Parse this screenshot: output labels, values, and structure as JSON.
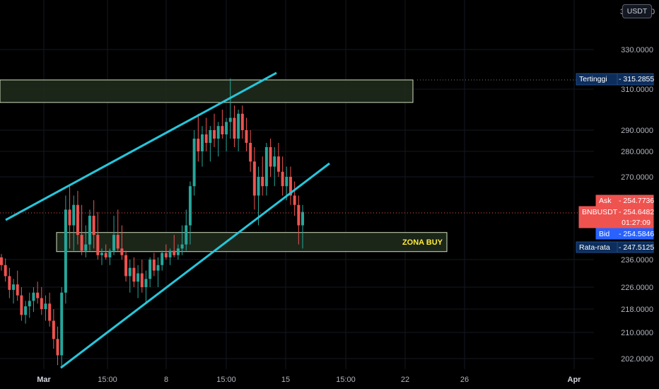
{
  "currency_button": "USDT",
  "top_partial_label": "3",
  "top_partial_suffix": "0",
  "chart_data": {
    "type": "candlestick",
    "y_ticks": [
      "330.0000",
      "310.0000",
      "290.0000",
      "280.0000",
      "270.0000",
      "236.0000",
      "226.0000",
      "218.0000",
      "210.0000",
      "202.0000"
    ],
    "x_ticks": [
      {
        "label": "Mar",
        "bold": true
      },
      {
        "label": "15:00",
        "bold": false
      },
      {
        "label": "8",
        "bold": false
      },
      {
        "label": "15:00",
        "bold": false
      },
      {
        "label": "15",
        "bold": false
      },
      {
        "label": "15:00",
        "bold": false
      },
      {
        "label": "22",
        "bold": false
      },
      {
        "label": "26",
        "bold": false
      },
      {
        "label": "Apr",
        "bold": true
      }
    ],
    "price_badges": [
      {
        "label": "Tertinggi",
        "value": "315.2855",
        "style": "dark"
      },
      {
        "label": "Ask",
        "value": "254.7736",
        "style": "red"
      },
      {
        "label": "BNBUSDT",
        "value": "254.6482",
        "extra": "01:27:09",
        "style": "red"
      },
      {
        "label": "Bid",
        "value": "254.5846",
        "style": "blue"
      },
      {
        "label": "Rata-rata",
        "value": "247.5125",
        "style": "dark"
      }
    ],
    "zones": [
      {
        "label": "",
        "top": 315.3,
        "bottom": 303.5
      },
      {
        "label": "ZONA BUY",
        "top": 250.5,
        "bottom": 243.2
      }
    ],
    "colors": {
      "up": "#26a69a",
      "down": "#ef5350",
      "trendline": "#26c6da",
      "zone_border": "#d1dfc0",
      "zone_fill": "#1e2a1c",
      "grid": "#131722"
    },
    "ohlc": [
      [
        238,
        241,
        232,
        234
      ],
      [
        234,
        237,
        228,
        230
      ],
      [
        230,
        233,
        222,
        225
      ],
      [
        225,
        229,
        220,
        227
      ],
      [
        227,
        232,
        221,
        223
      ],
      [
        223,
        226,
        214,
        216
      ],
      [
        216,
        221,
        213,
        219
      ],
      [
        219,
        224,
        215,
        221
      ],
      [
        221,
        226,
        217,
        224
      ],
      [
        224,
        228,
        220,
        222
      ],
      [
        222,
        226,
        216,
        218
      ],
      [
        218,
        223,
        214,
        220
      ],
      [
        220,
        224,
        212,
        214
      ],
      [
        214,
        218,
        205,
        208
      ],
      [
        208,
        212,
        200,
        203
      ],
      [
        203,
        226,
        199,
        224
      ],
      [
        224,
        262,
        220,
        256
      ],
      [
        256,
        266,
        246,
        252
      ],
      [
        252,
        262,
        244,
        258
      ],
      [
        258,
        264,
        248,
        250
      ],
      [
        250,
        258,
        240,
        244
      ],
      [
        244,
        252,
        238,
        248
      ],
      [
        248,
        256,
        244,
        254
      ],
      [
        254,
        260,
        246,
        250
      ],
      [
        250,
        255,
        236,
        240
      ],
      [
        240,
        246,
        234,
        242
      ],
      [
        242,
        248,
        236,
        238
      ],
      [
        238,
        246,
        234,
        244
      ],
      [
        244,
        254,
        240,
        250
      ],
      [
        250,
        256,
        244,
        246
      ],
      [
        246,
        252,
        236,
        240
      ],
      [
        240,
        244,
        228,
        230
      ],
      [
        230,
        236,
        224,
        233
      ],
      [
        233,
        238,
        226,
        228
      ],
      [
        228,
        234,
        222,
        231
      ],
      [
        231,
        236,
        224,
        226
      ],
      [
        226,
        232,
        220,
        229
      ],
      [
        229,
        238,
        226,
        236
      ],
      [
        236,
        242,
        230,
        232
      ],
      [
        232,
        238,
        226,
        234
      ],
      [
        234,
        244,
        232,
        242
      ],
      [
        242,
        248,
        236,
        238
      ],
      [
        238,
        246,
        234,
        244
      ],
      [
        244,
        250,
        238,
        240
      ],
      [
        240,
        248,
        236,
        246
      ],
      [
        246,
        252,
        240,
        248
      ],
      [
        248,
        256,
        244,
        252
      ],
      [
        252,
        268,
        248,
        266
      ],
      [
        266,
        290,
        262,
        286
      ],
      [
        286,
        298,
        276,
        280
      ],
      [
        280,
        292,
        274,
        288
      ],
      [
        288,
        296,
        280,
        284
      ],
      [
        284,
        292,
        276,
        290
      ],
      [
        290,
        298,
        282,
        286
      ],
      [
        286,
        294,
        278,
        292
      ],
      [
        292,
        300,
        286,
        288
      ],
      [
        288,
        296,
        280,
        294
      ],
      [
        294,
        316,
        286,
        296
      ],
      [
        296,
        302,
        282,
        286
      ],
      [
        286,
        300,
        280,
        298
      ],
      [
        298,
        302,
        286,
        290
      ],
      [
        290,
        296,
        280,
        284
      ],
      [
        284,
        290,
        272,
        276
      ],
      [
        276,
        282,
        256,
        262
      ],
      [
        262,
        274,
        252,
        270
      ],
      [
        270,
        278,
        262,
        266
      ],
      [
        266,
        284,
        262,
        282
      ],
      [
        282,
        286,
        270,
        274
      ],
      [
        274,
        282,
        266,
        278
      ],
      [
        278,
        284,
        270,
        272
      ],
      [
        272,
        278,
        262,
        266
      ],
      [
        266,
        274,
        260,
        270
      ],
      [
        270,
        274,
        258,
        262
      ],
      [
        262,
        268,
        254,
        258
      ],
      [
        258,
        262,
        248,
        252
      ],
      [
        252,
        258,
        246,
        255
      ]
    ]
  }
}
